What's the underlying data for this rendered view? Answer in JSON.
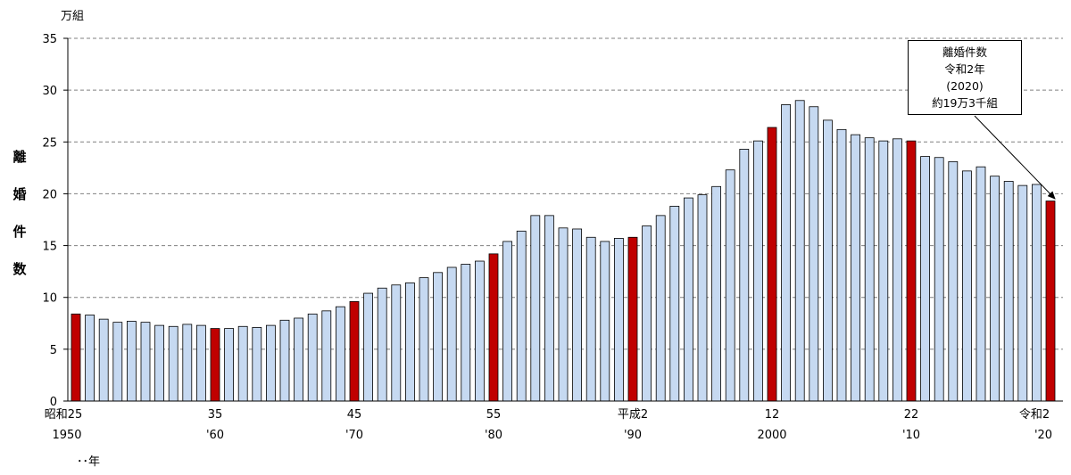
{
  "chart_data": {
    "type": "bar",
    "unit_label": "万組",
    "ylabel": "離婚件数",
    "yticks": [
      "0",
      "5",
      "10",
      "15",
      "20",
      "25",
      "30",
      "35"
    ],
    "ylim": [
      0,
      35
    ],
    "grid": true,
    "xaxis_suffix": "･･年",
    "x_era_labels": [
      {
        "index": 0,
        "era": "昭和25",
        "year": "1950"
      },
      {
        "index": 10,
        "era": "35",
        "year": "'60"
      },
      {
        "index": 20,
        "era": "45",
        "year": "'70"
      },
      {
        "index": 30,
        "era": "55",
        "year": "'80"
      },
      {
        "index": 40,
        "era": "平成2",
        "year": "'90"
      },
      {
        "index": 50,
        "era": "12",
        "year": "2000"
      },
      {
        "index": 60,
        "era": "22",
        "year": "'10"
      },
      {
        "index": 70,
        "era": "令和2",
        "year": "'20"
      }
    ],
    "years": [
      1950,
      1951,
      1952,
      1953,
      1954,
      1955,
      1956,
      1957,
      1958,
      1959,
      1960,
      1961,
      1962,
      1963,
      1964,
      1965,
      1966,
      1967,
      1968,
      1969,
      1970,
      1971,
      1972,
      1973,
      1974,
      1975,
      1976,
      1977,
      1978,
      1979,
      1980,
      1981,
      1982,
      1983,
      1984,
      1985,
      1986,
      1987,
      1988,
      1989,
      1990,
      1991,
      1992,
      1993,
      1994,
      1995,
      1996,
      1997,
      1998,
      1999,
      2000,
      2001,
      2002,
      2003,
      2004,
      2005,
      2006,
      2007,
      2008,
      2009,
      2010,
      2011,
      2012,
      2013,
      2014,
      2015,
      2016,
      2017,
      2018,
      2019,
      2020
    ],
    "values": [
      8.4,
      8.3,
      7.9,
      7.6,
      7.7,
      7.6,
      7.3,
      7.2,
      7.4,
      7.3,
      7.0,
      7.0,
      7.2,
      7.1,
      7.3,
      7.8,
      8.0,
      8.4,
      8.7,
      9.1,
      9.6,
      10.4,
      10.9,
      11.2,
      11.4,
      11.9,
      12.4,
      12.9,
      13.2,
      13.5,
      14.2,
      15.4,
      16.4,
      17.9,
      17.9,
      16.7,
      16.6,
      15.8,
      15.4,
      15.7,
      15.8,
      16.9,
      17.9,
      18.8,
      19.6,
      19.9,
      20.7,
      22.3,
      24.3,
      25.1,
      26.4,
      28.6,
      29.0,
      28.4,
      27.1,
      26.2,
      25.7,
      25.4,
      25.1,
      25.3,
      25.1,
      23.6,
      23.5,
      23.1,
      22.2,
      22.6,
      21.7,
      21.2,
      20.8,
      20.9,
      19.3
    ],
    "highlight_years": [
      1950,
      1960,
      1970,
      1980,
      1990,
      2000,
      2010,
      2020
    ],
    "colors": {
      "normal": "#c6d9f1",
      "highlight": "#c00000",
      "grid": "#808080",
      "axis": "#000000",
      "edge": "#000000"
    },
    "callout": {
      "lines": [
        "離婚件数",
        "令和2年",
        "(2020)",
        "約19万3千組"
      ],
      "target_year": 2020
    }
  }
}
